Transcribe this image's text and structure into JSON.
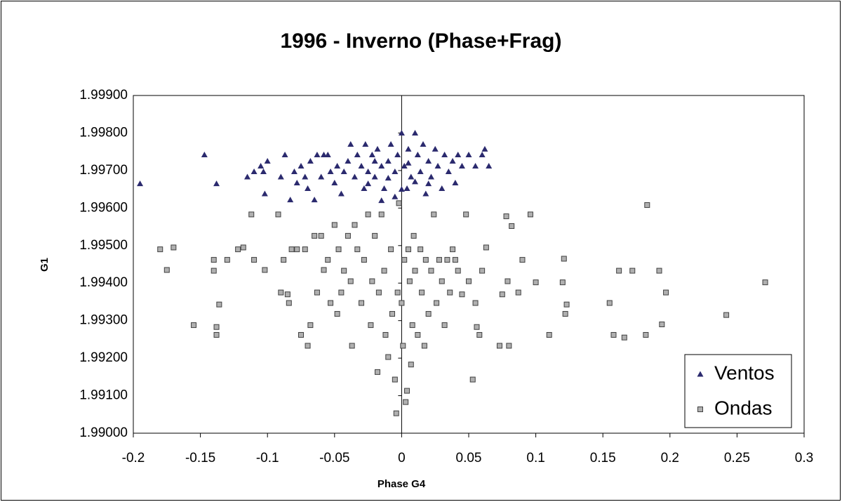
{
  "chart_data": {
    "type": "scatter",
    "title": "1996 - Inverno (Phase+Frag)",
    "x_label": "Phase G4",
    "y_label": "G1",
    "xlim": [
      -0.2,
      0.3
    ],
    "xticks": [
      -0.2,
      -0.15,
      -0.1,
      -0.05,
      0,
      0.05,
      0.1,
      0.15,
      0.2,
      0.25,
      0.3
    ],
    "ylim": [
      1.99,
      1.999
    ],
    "yticks": [
      {
        "value": 1.99,
        "label": "1.99000"
      },
      {
        "value": 1.991,
        "label": "1.99100"
      },
      {
        "value": 1.992,
        "label": "1.99200"
      },
      {
        "value": 1.993,
        "label": "1.99300"
      },
      {
        "value": 1.994,
        "label": "1.99400"
      },
      {
        "value": 1.995,
        "label": "1.99500"
      },
      {
        "value": 1.996,
        "label": "1.99600"
      },
      {
        "value": 1.997,
        "label": "1.99700"
      },
      {
        "value": 1.998,
        "label": "1.99800"
      },
      {
        "value": 1.999,
        "label": "1.99900"
      }
    ],
    "legend": "bottom-right",
    "series": [
      {
        "name": "Ventos",
        "color": "#2b2a6e",
        "marker": "triangle",
        "x": [
          -0.195,
          -0.147,
          -0.138,
          -0.115,
          -0.11,
          -0.105,
          -0.103,
          -0.102,
          -0.1,
          -0.09,
          -0.087,
          -0.083,
          -0.08,
          -0.078,
          -0.075,
          -0.072,
          -0.07,
          -0.068,
          -0.065,
          -0.063,
          -0.06,
          -0.058,
          -0.055,
          -0.053,
          -0.05,
          -0.048,
          -0.045,
          -0.043,
          -0.04,
          -0.038,
          -0.035,
          -0.033,
          -0.03,
          -0.028,
          -0.027,
          -0.025,
          -0.022,
          -0.02,
          -0.018,
          -0.015,
          -0.013,
          -0.01,
          -0.008,
          -0.005,
          -0.003,
          0,
          0.002,
          0.004,
          0.005,
          0.007,
          0.01,
          0.012,
          0.014,
          0.016,
          0.018,
          0.02,
          0.022,
          0.025,
          0.027,
          0.03,
          0.032,
          0.035,
          0.038,
          0.04,
          0.042,
          0.045,
          0.05,
          0.055,
          0.06,
          0.062,
          0.065,
          -0.015,
          0,
          -0.005,
          0.01,
          -0.025,
          0.02,
          -0.01,
          0.005,
          -0.02
        ],
        "y": [
          1.99665,
          1.99742,
          1.99665,
          1.99683,
          1.99697,
          1.99712,
          1.99697,
          1.99638,
          1.99725,
          1.99683,
          1.99742,
          1.99622,
          1.99697,
          1.99667,
          1.99712,
          1.99683,
          1.99652,
          1.99725,
          1.99622,
          1.99742,
          1.99683,
          1.99742,
          1.99742,
          1.99697,
          1.99667,
          1.99712,
          1.99638,
          1.99697,
          1.99725,
          1.9977,
          1.99683,
          1.99742,
          1.99712,
          1.99652,
          1.9977,
          1.99697,
          1.99742,
          1.99683,
          1.99757,
          1.99712,
          1.99652,
          1.99725,
          1.9977,
          1.99697,
          1.99742,
          1.998,
          1.99712,
          1.99652,
          1.99757,
          1.99683,
          1.998,
          1.99742,
          1.99697,
          1.9977,
          1.99638,
          1.99725,
          1.99683,
          1.99757,
          1.99712,
          1.99652,
          1.99742,
          1.99697,
          1.99725,
          1.99667,
          1.99742,
          1.99712,
          1.99742,
          1.99712,
          1.99742,
          1.99757,
          1.99712,
          1.9962,
          1.9965,
          1.9963,
          1.9967,
          1.99665,
          1.99665,
          1.9968,
          1.9972,
          1.99725
        ]
      },
      {
        "name": "Ondas",
        "color": "#b0b0b0",
        "marker": "square",
        "x": [
          -0.18,
          -0.175,
          -0.17,
          -0.155,
          -0.14,
          -0.14,
          -0.138,
          -0.138,
          -0.136,
          -0.13,
          -0.122,
          -0.118,
          -0.112,
          -0.11,
          -0.102,
          -0.092,
          -0.09,
          -0.088,
          -0.085,
          -0.084,
          -0.082,
          -0.078,
          -0.075,
          -0.072,
          -0.07,
          -0.068,
          -0.065,
          -0.063,
          -0.06,
          -0.058,
          -0.055,
          -0.053,
          -0.05,
          -0.048,
          -0.047,
          -0.045,
          -0.043,
          -0.04,
          -0.038,
          -0.037,
          -0.035,
          -0.033,
          -0.03,
          -0.028,
          -0.025,
          -0.023,
          -0.022,
          -0.02,
          -0.018,
          -0.017,
          -0.015,
          -0.013,
          -0.012,
          -0.01,
          -0.008,
          -0.007,
          -0.005,
          -0.004,
          -0.003,
          -0.002,
          0,
          0.001,
          0.002,
          0.003,
          0.004,
          0.005,
          0.006,
          0.007,
          0.008,
          0.009,
          0.01,
          0.012,
          0.014,
          0.015,
          0.017,
          0.018,
          0.02,
          0.022,
          0.024,
          0.026,
          0.028,
          0.03,
          0.032,
          0.034,
          0.036,
          0.038,
          0.04,
          0.042,
          0.045,
          0.048,
          0.05,
          0.053,
          0.055,
          0.056,
          0.058,
          0.06,
          0.063,
          0.073,
          0.075,
          0.078,
          0.079,
          0.08,
          0.082,
          0.087,
          0.09,
          0.096,
          0.1,
          0.11,
          0.12,
          0.121,
          0.122,
          0.123,
          0.155,
          0.158,
          0.162,
          0.166,
          0.172,
          0.182,
          0.183,
          0.192,
          0.194,
          0.197,
          0.242,
          0.271
        ],
        "y": [
          1.9949,
          1.99435,
          1.99495,
          1.99288,
          1.99462,
          1.99433,
          1.99283,
          1.99262,
          1.99343,
          1.99462,
          1.9949,
          1.99495,
          1.99583,
          1.99462,
          1.99435,
          1.99583,
          1.99375,
          1.99462,
          1.9937,
          1.99347,
          1.9949,
          1.9949,
          1.99262,
          1.9949,
          1.99233,
          1.99288,
          1.99526,
          1.99375,
          1.99526,
          1.99435,
          1.99462,
          1.99347,
          1.99555,
          1.99318,
          1.9949,
          1.99375,
          1.99433,
          1.99526,
          1.99405,
          1.99233,
          1.99555,
          1.9949,
          1.99347,
          1.99462,
          1.99583,
          1.99288,
          1.99405,
          1.99526,
          1.99163,
          1.99375,
          1.99583,
          1.99433,
          1.99262,
          1.99203,
          1.9949,
          1.99318,
          1.99143,
          1.99053,
          1.99375,
          1.99613,
          1.99347,
          1.99233,
          1.99462,
          1.99083,
          1.99113,
          1.9949,
          1.99405,
          1.99183,
          1.99288,
          1.99526,
          1.99433,
          1.99262,
          1.9949,
          1.99375,
          1.99233,
          1.99462,
          1.99318,
          1.99433,
          1.99583,
          1.99347,
          1.99462,
          1.99405,
          1.99288,
          1.99462,
          1.99375,
          1.9949,
          1.99462,
          1.99433,
          1.9937,
          1.99583,
          1.99405,
          1.99143,
          1.99347,
          1.99283,
          1.99262,
          1.99433,
          1.99495,
          1.99233,
          1.9937,
          1.99578,
          1.99405,
          1.99233,
          1.99552,
          1.99375,
          1.99462,
          1.99583,
          1.99402,
          1.99262,
          1.99402,
          1.99465,
          1.99318,
          1.99343,
          1.99347,
          1.99262,
          1.99433,
          1.99255,
          1.99433,
          1.99262,
          1.99608,
          1.99433,
          1.9929,
          1.99375,
          1.99315,
          1.99402
        ]
      }
    ]
  }
}
